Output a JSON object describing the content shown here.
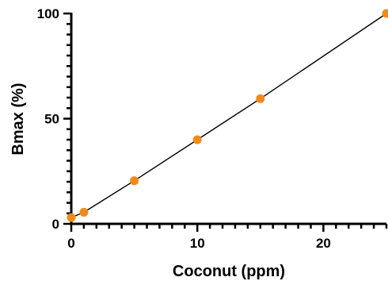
{
  "chart_data": {
    "type": "scatter",
    "xlabel": "Coconut (ppm)",
    "ylabel": "Bmax (%)",
    "xlim": [
      0,
      25
    ],
    "ylim": [
      0,
      100
    ],
    "x_ticks": [
      0,
      10,
      20
    ],
    "y_ticks": [
      0,
      50,
      100
    ],
    "x_minor_step": 1,
    "y_minor_step": 5,
    "grid": false,
    "marker_color": "#f28a16",
    "line_color": "#000000",
    "series": [
      {
        "points": [
          {
            "x": 0,
            "y": 3
          },
          {
            "x": 1,
            "y": 5.5
          },
          {
            "x": 5,
            "y": 20.5
          },
          {
            "x": 10,
            "y": 40
          },
          {
            "x": 15,
            "y": 59.5
          },
          {
            "x": 25,
            "y": 100
          }
        ],
        "fit_line": true
      }
    ]
  }
}
